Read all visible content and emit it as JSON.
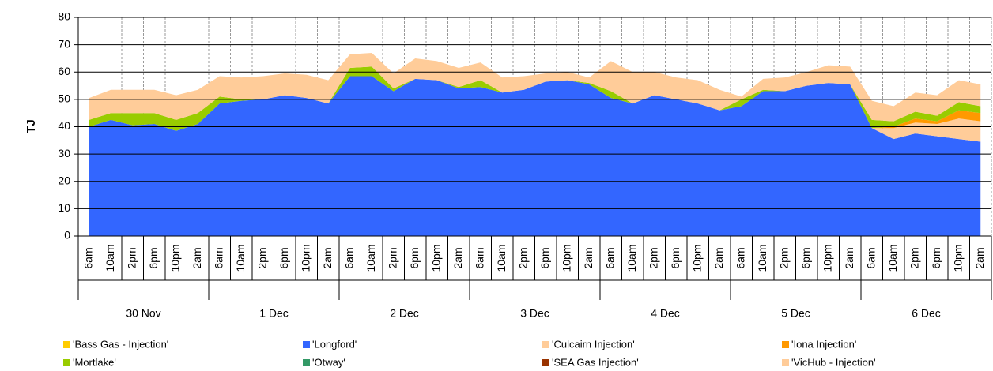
{
  "chart_data": {
    "type": "stacked_area",
    "y_label": "TJ",
    "categories": [
      "6am",
      "10am",
      "2pm",
      "6pm",
      "10pm",
      "2am",
      "6am",
      "10am",
      "2pm",
      "6pm",
      "10pm",
      "2am",
      "6am",
      "10am",
      "2pm",
      "6pm",
      "10pm",
      "2am",
      "6am",
      "10am",
      "2pm",
      "6pm",
      "10pm",
      "2am",
      "6am",
      "10am",
      "2pm",
      "6pm",
      "10pm",
      "2am",
      "6am",
      "10am",
      "2pm",
      "6pm",
      "10pm",
      "2am",
      "6am",
      "10am",
      "2pm",
      "6pm",
      "10pm",
      "2am"
    ],
    "category_groups": [
      "30 Nov",
      "1 Dec",
      "2 Dec",
      "3 Dec",
      "4 Dec",
      "5 Dec",
      "6 Dec"
    ],
    "ylim": [
      0,
      80
    ],
    "yticks": [
      0,
      10,
      20,
      30,
      40,
      50,
      60,
      70,
      80
    ],
    "grid": true,
    "series": [
      {
        "name": "'Bass Gas - Injection'",
        "color": "#FFCC00",
        "values": [
          0,
          0,
          0,
          0,
          0,
          0,
          0,
          0,
          0,
          0,
          0,
          0,
          0,
          0,
          0,
          0,
          0,
          0,
          0,
          0,
          0,
          0,
          0,
          0,
          0,
          0,
          0,
          0,
          0,
          0,
          0,
          0,
          0,
          0,
          0,
          0,
          0,
          0,
          0,
          0,
          0,
          0
        ]
      },
      {
        "name": "'Longford'",
        "color": "#3366FF",
        "values": [
          40,
          42.5,
          40.5,
          41,
          38.5,
          41,
          48.5,
          49.5,
          50,
          51.5,
          50.5,
          48.5,
          58.5,
          58.5,
          53,
          57.5,
          57,
          54,
          54.5,
          52.5,
          53.5,
          56.5,
          57,
          55.5,
          50.5,
          48.5,
          51.5,
          50,
          48.5,
          46,
          47.5,
          53,
          53,
          55,
          56,
          55.5,
          39.5,
          35.5,
          37.5,
          36.5,
          35.5,
          34.5
        ]
      },
      {
        "name": "'Culcairn Injection'",
        "color": "#FFCC99",
        "values": [
          0,
          0,
          0,
          0,
          0,
          0,
          0,
          0,
          0,
          0,
          0,
          0,
          0,
          0,
          0,
          0,
          0,
          0,
          0,
          0,
          0,
          0,
          0,
          0,
          0,
          0,
          0,
          0,
          0,
          0,
          0,
          0,
          0,
          0,
          0,
          0,
          0,
          4,
          4,
          4.5,
          7.5,
          7.5
        ]
      },
      {
        "name": "'Iona Injection'",
        "color": "#FF9900",
        "values": [
          0,
          0,
          0,
          0,
          0,
          0,
          0,
          0,
          0,
          0,
          0,
          0,
          0,
          0,
          0,
          0,
          0,
          0,
          0,
          0,
          0,
          0,
          0,
          0,
          0,
          0,
          0,
          0,
          0,
          0,
          0,
          0,
          0,
          0,
          0,
          0,
          0,
          0.5,
          1.5,
          1,
          3,
          3
        ]
      },
      {
        "name": "'Mortlake'",
        "color": "#99CC00",
        "values": [
          2.5,
          2.5,
          4.5,
          4,
          4,
          4,
          2.5,
          0.5,
          0,
          0,
          0,
          0,
          3,
          3.5,
          1,
          0,
          0,
          0.5,
          2.5,
          0,
          0,
          0,
          0,
          0.5,
          2.5,
          0,
          0,
          0,
          0,
          0,
          2.5,
          0.5,
          0,
          0,
          0,
          0,
          3,
          2,
          2.5,
          2,
          3,
          2.5
        ]
      },
      {
        "name": "'Otway'",
        "color": "#339966",
        "values": [
          0,
          0,
          0,
          0,
          0,
          0,
          0,
          0,
          0,
          0,
          0,
          0,
          0,
          0,
          0,
          0,
          0,
          0,
          0,
          0,
          0,
          0,
          0,
          0,
          0,
          0,
          0,
          0,
          0,
          0,
          0,
          0,
          0,
          0,
          0,
          0,
          0,
          0,
          0,
          0,
          0,
          0
        ]
      },
      {
        "name": "'SEA Gas Injection'",
        "color": "#993300",
        "values": [
          0,
          0,
          0,
          0,
          0,
          0,
          0,
          0,
          0,
          0,
          0,
          0,
          0,
          0,
          0,
          0,
          0,
          0,
          0,
          0,
          0,
          0,
          0,
          0,
          0,
          0,
          0,
          0,
          0,
          0,
          0,
          0,
          0,
          0,
          0,
          0,
          0,
          0,
          0,
          0,
          0,
          0
        ]
      },
      {
        "name": "'VicHub - Injection'",
        "color": "#FFCC99",
        "values": [
          8,
          8.5,
          8.5,
          8.5,
          9,
          8.5,
          7.5,
          8,
          8.5,
          8,
          8.5,
          8.5,
          5,
          5,
          5.5,
          7.5,
          7,
          7,
          6.5,
          5.5,
          5,
          3,
          3,
          2,
          11,
          11.5,
          8.5,
          8,
          8.5,
          7.5,
          1,
          4,
          5,
          5,
          6.5,
          6.5,
          7,
          5.5,
          7,
          7.5,
          8,
          8
        ]
      }
    ]
  }
}
